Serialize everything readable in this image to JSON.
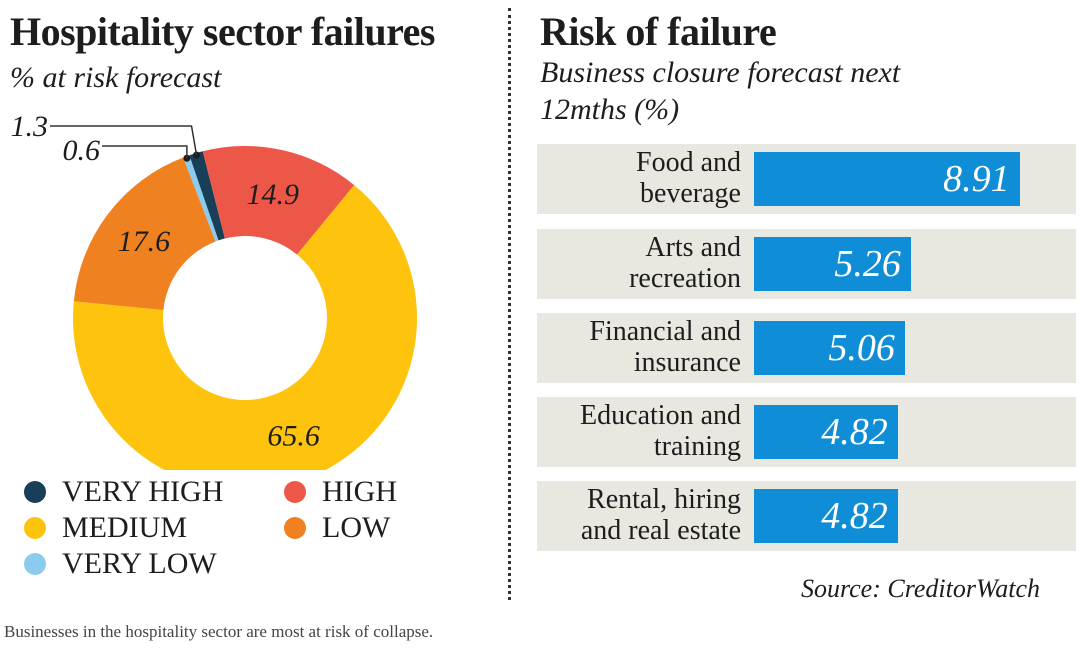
{
  "left": {
    "title": "Hospitality sector failures",
    "subtitle": "% at risk forecast"
  },
  "right": {
    "title": "Risk of failure",
    "subtitle": "Business closure forecast next 12mths (%)",
    "source": "Source: CreditorWatch"
  },
  "caption": "Businesses in the hospitality sector are most at risk of collapse.",
  "legend": [
    {
      "label": "VERY HIGH",
      "color": "#173f58"
    },
    {
      "label": "HIGH",
      "color": "#ec5748"
    },
    {
      "label": "MEDIUM",
      "color": "#fec40d"
    },
    {
      "label": "LOW",
      "color": "#f08121"
    },
    {
      "label": "VERY LOW",
      "color": "#8bcbee"
    }
  ],
  "chart_data": [
    {
      "type": "pie",
      "title": "Hospitality sector failures",
      "subtitle": "% at risk forecast",
      "slices": [
        {
          "label": "VERY HIGH",
          "value": 1.3,
          "color": "#173f58"
        },
        {
          "label": "HIGH",
          "value": 14.9,
          "color": "#ec5748"
        },
        {
          "label": "MEDIUM",
          "value": 65.6,
          "color": "#fec40d"
        },
        {
          "label": "LOW",
          "value": 17.6,
          "color": "#f08121"
        },
        {
          "label": "VERY LOW",
          "value": 0.6,
          "color": "#8bcbee"
        }
      ],
      "legend_placement": "bottom"
    },
    {
      "type": "bar",
      "orientation": "horizontal",
      "title": "Risk of failure",
      "subtitle": "Business closure forecast next 12mths (%)",
      "categories": [
        [
          "Food and",
          "beverage"
        ],
        [
          "Arts and",
          "recreation"
        ],
        [
          "Financial and",
          "insurance"
        ],
        [
          "Education and",
          "training"
        ],
        [
          "Rental, hiring",
          "and real estate"
        ]
      ],
      "values": [
        8.91,
        5.26,
        5.06,
        4.82,
        4.82
      ],
      "bar_color": "#0f8dd6",
      "xlim": [
        0,
        10.8
      ],
      "grid": false
    }
  ]
}
